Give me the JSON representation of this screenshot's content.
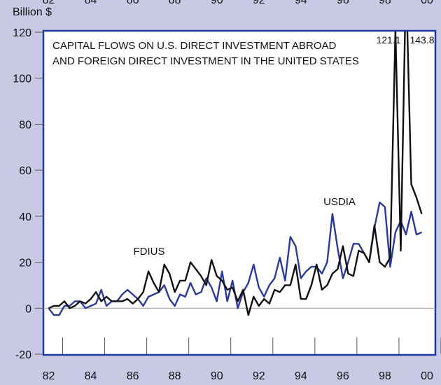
{
  "chart_data": {
    "type": "line",
    "title": [
      "CAPITAL FLOWS ON U.S. DIRECT INVESTMENT ABROAD",
      "AND FOREIGN DIRECT INVESTMENT IN THE UNITED STATES"
    ],
    "y_label": "Billion $",
    "annotations": [
      "121.1",
      "143.8"
    ],
    "x": [
      1982,
      1982.25,
      1982.5,
      1982.75,
      1983,
      1983.25,
      1983.5,
      1983.75,
      1984,
      1984.25,
      1984.5,
      1984.75,
      1985,
      1985.25,
      1985.5,
      1985.75,
      1986,
      1986.25,
      1986.5,
      1986.75,
      1987,
      1987.25,
      1987.5,
      1987.75,
      1988,
      1988.25,
      1988.5,
      1988.75,
      1989,
      1989.25,
      1989.5,
      1989.75,
      1990,
      1990.25,
      1990.5,
      1990.75,
      1991,
      1991.25,
      1991.5,
      1991.75,
      1992,
      1992.25,
      1992.5,
      1992.75,
      1993,
      1993.25,
      1993.5,
      1993.75,
      1994,
      1994.25,
      1994.5,
      1994.75,
      1995,
      1995.25,
      1995.5,
      1995.75,
      1996,
      1996.25,
      1996.5,
      1996.75,
      1997,
      1997.25,
      1997.5,
      1997.75,
      1998,
      1998.25,
      1998.5,
      1998.75,
      1999,
      1999.25,
      1999.5,
      1999.75
    ],
    "series": [
      {
        "name": "FDIUS",
        "color": "#111111",
        "values": [
          0,
          1,
          1,
          3,
          0,
          1,
          3,
          2,
          4,
          7,
          3,
          5,
          3,
          3,
          3,
          4,
          2,
          4,
          7,
          16,
          11,
          7,
          19,
          15,
          7,
          12,
          12,
          20,
          17,
          14,
          10,
          21,
          14,
          12,
          8,
          9,
          3,
          8,
          -3,
          5,
          1,
          4,
          2,
          8,
          7,
          10,
          10,
          19,
          4,
          4,
          10,
          19,
          8,
          10,
          15,
          17,
          27,
          15,
          14,
          25,
          24,
          20,
          36,
          20,
          18,
          22,
          121.1,
          25,
          143.8,
          54,
          48,
          41
        ]
      },
      {
        "name": "USDIA",
        "color": "#2a3a9c",
        "values": [
          0,
          -3,
          -3,
          1,
          1,
          3,
          3,
          0,
          1,
          2,
          8,
          1,
          3,
          3,
          6,
          8,
          6,
          4,
          1,
          5,
          6,
          7,
          10,
          4,
          1,
          6,
          5,
          11,
          6,
          7,
          13,
          9,
          3,
          16,
          3,
          12,
          0,
          7,
          11,
          19,
          9,
          5,
          10,
          13,
          22,
          12,
          31,
          27,
          13,
          16,
          18,
          18,
          15,
          20,
          41,
          26,
          13,
          20,
          28,
          28,
          24,
          20,
          35,
          46,
          44,
          18,
          33,
          38,
          32,
          42,
          32,
          33
        ]
      }
    ],
    "xlim": [
      1981.75,
      2000.4
    ],
    "xticks": [
      {
        "value": 1982,
        "label": "82"
      },
      {
        "value": 1984,
        "label": "84"
      },
      {
        "value": 1986,
        "label": "86"
      },
      {
        "value": 1988,
        "label": "88"
      },
      {
        "value": 1990,
        "label": "90"
      },
      {
        "value": 1992,
        "label": "92"
      },
      {
        "value": 1994,
        "label": "94"
      },
      {
        "value": 1996,
        "label": "96"
      },
      {
        "value": 1998,
        "label": "98"
      },
      {
        "value": 2000,
        "label": "00"
      }
    ],
    "ylim": [
      -20,
      120
    ],
    "yticks": [
      -20,
      0,
      20,
      40,
      60,
      80,
      100,
      120
    ]
  }
}
